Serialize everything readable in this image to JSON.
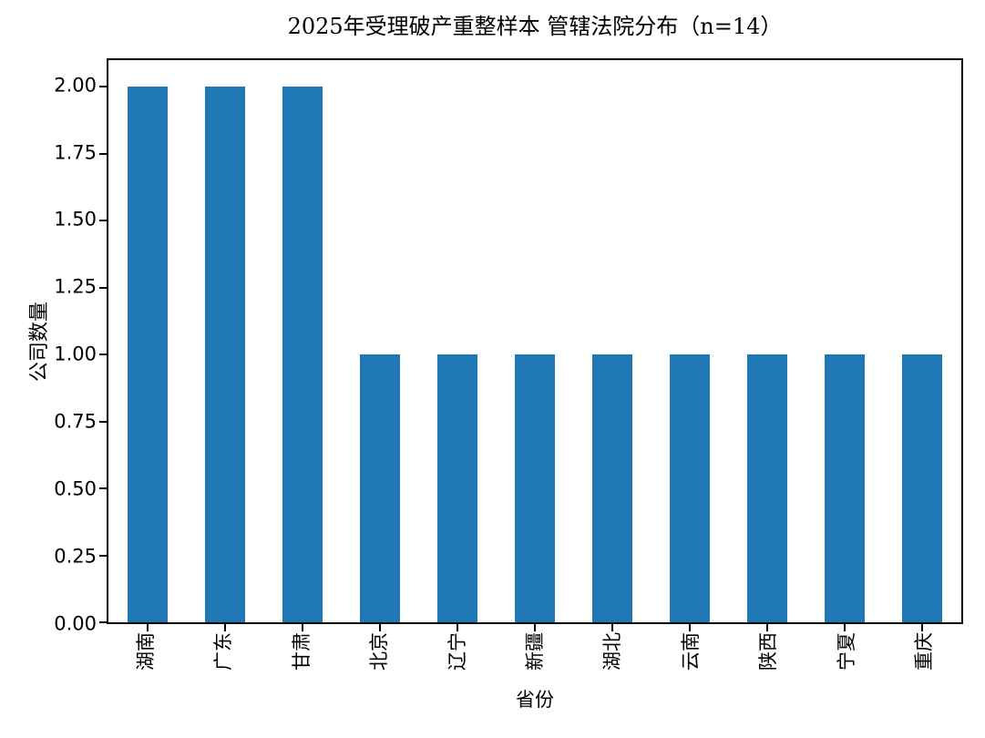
{
  "chart_data": {
    "type": "bar",
    "title": "2025年受理破产重整样本 管辖法院分布（n=14）",
    "xlabel": "省份",
    "ylabel": "公司数量",
    "categories": [
      "湖南",
      "广东",
      "甘肃",
      "北京",
      "辽宁",
      "新疆",
      "湖北",
      "云南",
      "陕西",
      "宁夏",
      "重庆"
    ],
    "values": [
      2,
      2,
      2,
      1,
      1,
      1,
      1,
      1,
      1,
      1,
      1
    ],
    "ylim": [
      0,
      2.1
    ],
    "yticks": [
      {
        "value": 0.0,
        "label": "0.00"
      },
      {
        "value": 0.25,
        "label": "0.25"
      },
      {
        "value": 0.5,
        "label": "0.50"
      },
      {
        "value": 0.75,
        "label": "0.75"
      },
      {
        "value": 1.0,
        "label": "1.00"
      },
      {
        "value": 1.25,
        "label": "1.25"
      },
      {
        "value": 1.5,
        "label": "1.50"
      },
      {
        "value": 1.75,
        "label": "1.75"
      },
      {
        "value": 2.0,
        "label": "2.00"
      }
    ],
    "bar_color": "#1f77b4",
    "bar_width_fraction": 0.5,
    "grid": false,
    "legend_position": "none"
  }
}
